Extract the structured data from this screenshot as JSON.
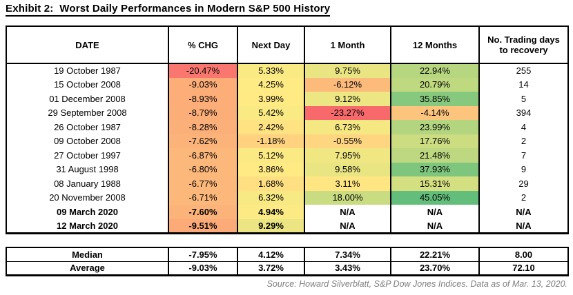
{
  "title": "Exhibit 2:  Worst Daily Performances in Modern S&P 500 History",
  "source": "Source: Howard Silverblatt, S&P Dow Jones Indices. Data as of Mar. 13, 2020.",
  "colors": {
    "scale_min_red": "#F8696B",
    "scale_mid_yellow": "#FFEB84",
    "scale_max_green": "#63BE7B",
    "border": "#000000",
    "source_text": "#7F7F7F"
  },
  "table": {
    "columns": [
      "DATE",
      "% CHG",
      "Next Day",
      "1 Month",
      "12 Months",
      "No. Trading days to recovery"
    ],
    "rows": [
      {
        "date": "19 October 1987",
        "chg": "-20.47%",
        "chg_bg": "#F9776E",
        "next_day": "5.33%",
        "next_day_bg": "#FAEA84",
        "one_month": "9.75%",
        "one_month_bg": "#EAE583",
        "twelve_months": "22.94%",
        "twelve_months_bg": "#B7D680",
        "recovery": "255",
        "bold": false
      },
      {
        "date": "15 October 2008",
        "chg": "-9.03%",
        "chg_bg": "#FCAD78",
        "next_day": "4.25%",
        "next_day_bg": "#FEEB84",
        "one_month": "-6.12%",
        "one_month_bg": "#FCBA7B",
        "twelve_months": "20.79%",
        "twelve_months_bg": "#BFD980",
        "recovery": "14",
        "bold": false
      },
      {
        "date": "01 December 2008",
        "chg": "-8.93%",
        "chg_bg": "#FCAD78",
        "next_day": "3.99%",
        "next_day_bg": "#FFEA84",
        "one_month": "9.12%",
        "one_month_bg": "#ECE683",
        "twelve_months": "35.85%",
        "twelve_months_bg": "#86C87D",
        "recovery": "5",
        "bold": false
      },
      {
        "date": "29 September 2008",
        "chg": "-8.79%",
        "chg_bg": "#FCAE78",
        "next_day": "5.42%",
        "next_day_bg": "#FAEA84",
        "one_month": "-23.27%",
        "one_month_bg": "#F8696B",
        "twelve_months": "-4.14%",
        "twelve_months_bg": "#FDC47D",
        "recovery": "394",
        "bold": false
      },
      {
        "date": "26 October 1987",
        "chg": "-8.28%",
        "chg_bg": "#FCB079",
        "next_day": "2.42%",
        "next_day_bg": "#FFE382",
        "one_month": "6.73%",
        "one_month_bg": "#F5E883",
        "twelve_months": "23.99%",
        "twelve_months_bg": "#B3D580",
        "recovery": "4",
        "bold": false
      },
      {
        "date": "09 October 2008",
        "chg": "-7.62%",
        "chg_bg": "#FCB379",
        "next_day": "-1.18%",
        "next_day_bg": "#FED27F",
        "one_month": "-0.55%",
        "one_month_bg": "#FED580",
        "twelve_months": "17.76%",
        "twelve_months_bg": "#CBDC81",
        "recovery": "2",
        "bold": false
      },
      {
        "date": "27 October 1997",
        "chg": "-6.87%",
        "chg_bg": "#FCB77A",
        "next_day": "5.12%",
        "next_day_bg": "#FBEA84",
        "one_month": "7.95%",
        "one_month_bg": "#F0E783",
        "twelve_months": "21.48%",
        "twelve_months_bg": "#BDD880",
        "recovery": "7",
        "bold": false
      },
      {
        "date": "31 August 1998",
        "chg": "-6.80%",
        "chg_bg": "#FCB77A",
        "next_day": "3.86%",
        "next_day_bg": "#FFEA84",
        "one_month": "9.58%",
        "one_month_bg": "#EAE583",
        "twelve_months": "37.93%",
        "twelve_months_bg": "#7EC67D",
        "recovery": "9",
        "bold": false
      },
      {
        "date": "08 January 1988",
        "chg": "-6.77%",
        "chg_bg": "#FCB77A",
        "next_day": "1.68%",
        "next_day_bg": "#FEDF82",
        "one_month": "3.11%",
        "one_month_bg": "#FFE683",
        "twelve_months": "15.31%",
        "twelve_months_bg": "#D4DF82",
        "recovery": "29",
        "bold": false
      },
      {
        "date": "20 November 2008",
        "chg": "-6.71%",
        "chg_bg": "#FCB87A",
        "next_day": "6.32%",
        "next_day_bg": "#F7E984",
        "one_month": "18.00%",
        "one_month_bg": "#CADC81",
        "twelve_months": "45.05%",
        "twelve_months_bg": "#63BE7B",
        "recovery": "2",
        "bold": false
      },
      {
        "date": "09 March 2020",
        "chg": "-7.60%",
        "chg_bg": "#FCB379",
        "next_day": "4.94%",
        "next_day_bg": "#FCEA84",
        "one_month": "N/A",
        "one_month_bg": null,
        "twelve_months": "N/A",
        "twelve_months_bg": null,
        "recovery": "N/A",
        "bold": true
      },
      {
        "date": "12 March 2020",
        "chg": "-9.51%",
        "chg_bg": "#FCAA78",
        "next_day": "9.29%",
        "next_day_bg": "#EBE583",
        "one_month": "N/A",
        "one_month_bg": null,
        "twelve_months": "N/A",
        "twelve_months_bg": null,
        "recovery": "N/A",
        "bold": true
      }
    ]
  },
  "summary": {
    "rows": [
      {
        "label": "Median",
        "chg": "-7.95%",
        "next_day": "4.12%",
        "one_month": "7.34%",
        "twelve_months": "22.21%",
        "recovery": "8.00"
      },
      {
        "label": "Average",
        "chg": "-9.03%",
        "next_day": "3.72%",
        "one_month": "3.43%",
        "twelve_months": "23.70%",
        "recovery": "72.10"
      }
    ]
  }
}
